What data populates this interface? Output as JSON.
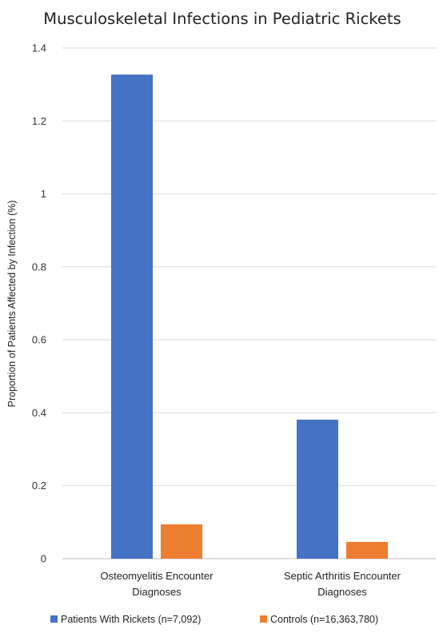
{
  "chart_data": {
    "type": "bar",
    "title": "Musculoskeletal Infections in Pediatric Rickets",
    "ylabel": "Proportion of Patients Affected by Infection (%)",
    "xlabel": "",
    "categories": [
      [
        "Osteomyelitis Encounter",
        "Diagnoses"
      ],
      [
        "Septic Arthritis Encounter",
        "Diagnoses"
      ]
    ],
    "series": [
      {
        "name": "Patients With Rickets (n=7,092)",
        "color": "#4472c4",
        "values": [
          1.327,
          0.381
        ]
      },
      {
        "name": "Controls (n=16,363,780)",
        "color": "#ed7d31",
        "values": [
          0.094,
          0.046
        ]
      }
    ],
    "ylim": [
      0,
      1.4
    ],
    "yticks": [
      "0",
      "0.2",
      "0.4",
      "0.6",
      "0.8",
      "1",
      "1.2",
      "1.4"
    ],
    "grid": true,
    "legend": "bottom"
  }
}
